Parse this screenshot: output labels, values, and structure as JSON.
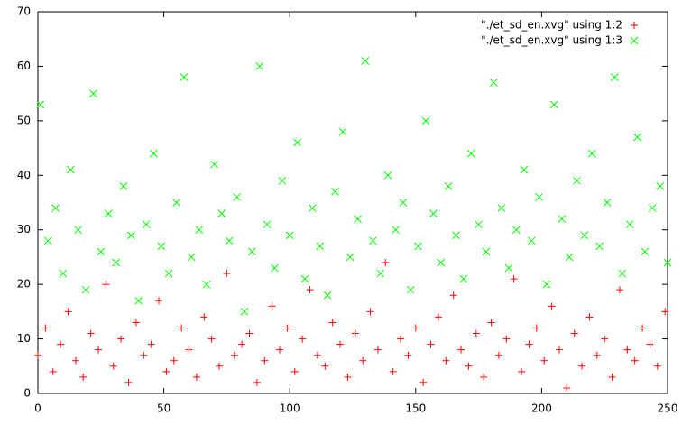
{
  "chart_data": {
    "type": "scatter",
    "xlim": [
      0,
      250
    ],
    "ylim": [
      0,
      70
    ],
    "xticks": [
      0,
      50,
      100,
      150,
      200,
      250
    ],
    "yticks": [
      0,
      10,
      20,
      30,
      40,
      50,
      60,
      70
    ],
    "legend": "top-right",
    "series": [
      {
        "name": "\"./et_sd_en.xvg\" using 1:2",
        "color": "#ff0000",
        "marker": "plus",
        "x": [
          0,
          3,
          6,
          9,
          12,
          15,
          18,
          21,
          24,
          27,
          30,
          33,
          36,
          39,
          42,
          45,
          48,
          51,
          54,
          57,
          60,
          63,
          66,
          69,
          72,
          75,
          78,
          81,
          84,
          87,
          90,
          93,
          96,
          99,
          102,
          105,
          108,
          111,
          114,
          117,
          120,
          123,
          126,
          129,
          132,
          135,
          138,
          141,
          144,
          147,
          150,
          153,
          156,
          159,
          162,
          165,
          168,
          171,
          174,
          177,
          180,
          183,
          186,
          189,
          192,
          195,
          198,
          201,
          204,
          207,
          210,
          213,
          216,
          219,
          222,
          225,
          228,
          231,
          234,
          237,
          240,
          243,
          246,
          249
        ],
        "values": [
          7,
          12,
          4,
          9,
          15,
          6,
          3,
          11,
          8,
          20,
          5,
          10,
          2,
          13,
          7,
          9,
          17,
          4,
          6,
          12,
          8,
          3,
          14,
          10,
          5,
          22,
          7,
          9,
          11,
          2,
          6,
          16,
          8,
          12,
          4,
          10,
          19,
          7,
          5,
          13,
          9,
          3,
          11,
          6,
          15,
          8,
          24,
          4,
          10,
          7,
          12,
          2,
          9,
          14,
          6,
          18,
          8,
          5,
          11,
          3,
          13,
          7,
          10,
          21,
          4,
          9,
          12,
          6,
          16,
          8,
          1,
          11,
          5,
          14,
          7,
          10,
          3,
          19,
          8,
          6,
          12,
          9,
          5,
          15
        ]
      },
      {
        "name": "\"./et_sd_en.xvg\" using 1:3",
        "color": "#00ff00",
        "marker": "cross",
        "x": [
          1,
          4,
          7,
          10,
          13,
          16,
          19,
          22,
          25,
          28,
          31,
          34,
          37,
          40,
          43,
          46,
          49,
          52,
          55,
          58,
          61,
          64,
          67,
          70,
          73,
          76,
          79,
          82,
          85,
          88,
          91,
          94,
          97,
          100,
          103,
          106,
          109,
          112,
          115,
          118,
          121,
          124,
          127,
          130,
          133,
          136,
          139,
          142,
          145,
          148,
          151,
          154,
          157,
          160,
          163,
          166,
          169,
          172,
          175,
          178,
          181,
          184,
          187,
          190,
          193,
          196,
          199,
          202,
          205,
          208,
          211,
          214,
          217,
          220,
          223,
          226,
          229,
          232,
          235,
          238,
          241,
          244,
          247,
          250
        ],
        "values": [
          53,
          28,
          34,
          22,
          41,
          30,
          19,
          55,
          26,
          33,
          24,
          38,
          29,
          17,
          31,
          44,
          27,
          22,
          35,
          58,
          25,
          30,
          20,
          42,
          33,
          28,
          36,
          15,
          26,
          60,
          31,
          23,
          39,
          29,
          46,
          21,
          34,
          27,
          18,
          37,
          48,
          25,
          32,
          61,
          28,
          22,
          40,
          30,
          35,
          19,
          27,
          50,
          33,
          24,
          38,
          29,
          21,
          44,
          31,
          26,
          57,
          34,
          23,
          30,
          41,
          28,
          36,
          20,
          53,
          32,
          25,
          39,
          29,
          44,
          27,
          35,
          58,
          22,
          31,
          47,
          26,
          34,
          38,
          24
        ]
      }
    ]
  }
}
